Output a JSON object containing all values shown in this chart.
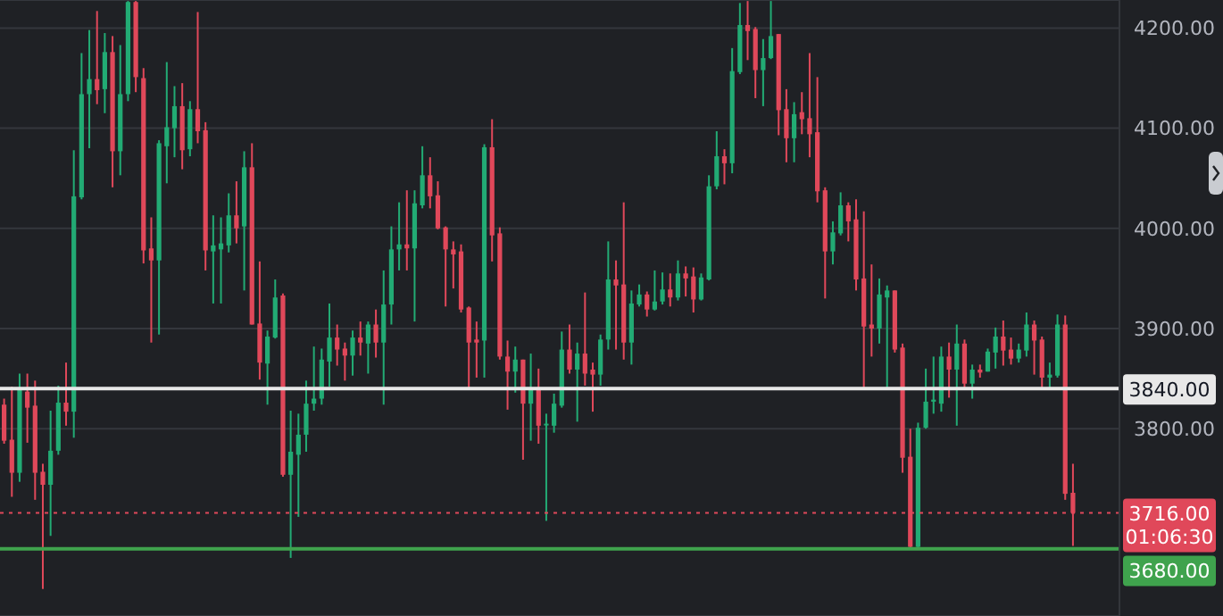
{
  "chart_data": {
    "type": "candlestick",
    "categories": [
      null,
      null,
      null,
      null,
      null,
      null,
      null,
      null,
      null,
      null,
      null,
      null,
      null,
      null,
      null,
      null,
      null,
      null,
      null,
      null,
      null,
      null,
      null,
      null,
      null,
      null,
      null,
      null,
      null,
      null,
      null,
      null,
      null,
      null,
      null,
      null,
      null,
      null,
      null,
      null,
      null,
      null,
      null,
      null,
      null,
      null,
      null,
      null,
      null,
      null,
      null,
      null,
      null,
      null,
      null,
      null,
      null,
      null,
      null,
      null,
      null,
      null,
      null,
      null,
      null,
      null,
      null,
      null,
      null,
      null,
      null,
      null,
      null,
      null,
      null,
      null,
      null,
      null,
      null,
      null,
      null,
      null,
      null,
      null,
      null,
      null,
      null,
      null,
      null,
      null,
      null,
      null,
      null,
      null,
      null,
      null,
      null,
      null,
      null,
      null,
      null,
      null,
      null,
      null,
      null,
      null,
      null,
      null,
      null,
      null,
      null,
      null,
      null,
      null,
      null,
      null,
      null,
      null,
      null,
      null,
      null,
      null,
      null,
      null,
      null,
      null,
      null,
      null,
      null,
      null,
      null,
      null,
      null,
      null,
      null,
      null,
      null,
      null,
      null
    ],
    "ohlc": [
      [
        3824,
        3830,
        3785,
        3788
      ],
      [
        3789,
        3842,
        3732,
        3756
      ],
      [
        3756,
        3855,
        3747,
        3839
      ],
      [
        3837,
        3855,
        3786,
        3821
      ],
      [
        3823,
        3848,
        3729,
        3756
      ],
      [
        3757,
        3765,
        3640,
        3744
      ],
      [
        3744,
        3818,
        3693,
        3778
      ],
      [
        3778,
        3843,
        3774,
        3826
      ],
      [
        3826,
        3866,
        3803,
        3817
      ],
      [
        3817,
        4078,
        3791,
        4032
      ],
      [
        4031,
        4175,
        4029,
        4134
      ],
      [
        4134,
        4198,
        4080,
        4149
      ],
      [
        4149,
        4217,
        4124,
        4138
      ],
      [
        4139,
        4195,
        4115,
        4176
      ],
      [
        4176,
        4192,
        4041,
        4077
      ],
      [
        4077,
        4183,
        4053,
        4134
      ],
      [
        4134,
        4227,
        4127,
        4226
      ],
      [
        4226,
        4227,
        4136,
        4151
      ],
      [
        4150,
        4160,
        3965,
        3978
      ],
      [
        3980,
        4011,
        3886,
        3968
      ],
      [
        3968,
        4088,
        3894,
        4085
      ],
      [
        4082,
        4166,
        4045,
        4101
      ],
      [
        4100,
        4142,
        4071,
        4122
      ],
      [
        4122,
        4145,
        4059,
        4078
      ],
      [
        4079,
        4127,
        4072,
        4119
      ],
      [
        4119,
        4216,
        4085,
        4097
      ],
      [
        4098,
        4106,
        3958,
        3978
      ],
      [
        3977,
        4013,
        3925,
        3983
      ],
      [
        3979,
        4011,
        3925,
        3985
      ],
      [
        3983,
        4035,
        3976,
        4013
      ],
      [
        4013,
        4047,
        3985,
        4000
      ],
      [
        4002,
        4077,
        3938,
        4061
      ],
      [
        4061,
        4085,
        3904,
        3904
      ],
      [
        3905,
        3967,
        3849,
        3866
      ],
      [
        3865,
        3898,
        3824,
        3892
      ],
      [
        3891,
        3949,
        3890,
        3931
      ],
      [
        3933,
        3935,
        3752,
        3754
      ],
      [
        3754,
        3818,
        3671,
        3777
      ],
      [
        3774,
        3815,
        3712,
        3794
      ],
      [
        3794,
        3848,
        3777,
        3825
      ],
      [
        3825,
        3882,
        3818,
        3830
      ],
      [
        3830,
        3880,
        3824,
        3869
      ],
      [
        3867,
        3925,
        3842,
        3891
      ],
      [
        3891,
        3904,
        3863,
        3879
      ],
      [
        3880,
        3886,
        3848,
        3873
      ],
      [
        3873,
        3898,
        3853,
        3891
      ],
      [
        3891,
        3907,
        3873,
        3886
      ],
      [
        3885,
        3907,
        3855,
        3904
      ],
      [
        3904,
        3919,
        3871,
        3886
      ],
      [
        3886,
        3958,
        3824,
        3924
      ],
      [
        3924,
        4002,
        3904,
        3979
      ],
      [
        3979,
        4026,
        3958,
        3984
      ],
      [
        3984,
        4038,
        3958,
        3980
      ],
      [
        3980,
        4038,
        3907,
        4025
      ],
      [
        4023,
        4082,
        4020,
        4053
      ],
      [
        4053,
        4071,
        4020,
        4032
      ],
      [
        4033,
        4047,
        3999,
        4000
      ],
      [
        4001,
        4002,
        3922,
        3979
      ],
      [
        3979,
        3987,
        3940,
        3974
      ],
      [
        3977,
        3984,
        3916,
        3919
      ],
      [
        3921,
        3922,
        3839,
        3886
      ],
      [
        3889,
        3907,
        3851,
        3886
      ],
      [
        3888,
        4084,
        3851,
        4081
      ],
      [
        4081,
        4109,
        3967,
        3993
      ],
      [
        3995,
        4001,
        3869,
        3872
      ],
      [
        3872,
        3888,
        3819,
        3857
      ],
      [
        3857,
        3882,
        3836,
        3869
      ],
      [
        3869,
        3869,
        3769,
        3825
      ],
      [
        3825,
        3875,
        3788,
        3839
      ],
      [
        3841,
        3860,
        3785,
        3803
      ],
      [
        3804,
        3815,
        3708,
        3805
      ],
      [
        3803,
        3835,
        3796,
        3825
      ],
      [
        3823,
        3897,
        3821,
        3879
      ],
      [
        3879,
        3904,
        3855,
        3859
      ],
      [
        3859,
        3886,
        3807,
        3875
      ],
      [
        3875,
        3936,
        3843,
        3855
      ],
      [
        3859,
        3866,
        3817,
        3854
      ],
      [
        3854,
        3894,
        3843,
        3889
      ],
      [
        3889,
        3987,
        3879,
        3949
      ],
      [
        3949,
        3968,
        3879,
        3943
      ],
      [
        3944,
        4026,
        3869,
        3886
      ],
      [
        3886,
        3938,
        3864,
        3925
      ],
      [
        3924,
        3944,
        3922,
        3934
      ],
      [
        3934,
        3937,
        3912,
        3919
      ],
      [
        3919,
        3958,
        3918,
        3927
      ],
      [
        3927,
        3956,
        3924,
        3939
      ],
      [
        3939,
        3955,
        3922,
        3931
      ],
      [
        3931,
        3968,
        3928,
        3955
      ],
      [
        3955,
        3962,
        3932,
        3950
      ],
      [
        3952,
        3961,
        3916,
        3929
      ],
      [
        3929,
        3955,
        3928,
        3951
      ],
      [
        3949,
        4053,
        3948,
        4042
      ],
      [
        4042,
        4097,
        4039,
        4072
      ],
      [
        4072,
        4079,
        4044,
        4065
      ],
      [
        4065,
        4180,
        4055,
        4157
      ],
      [
        4156,
        4225,
        4154,
        4203
      ],
      [
        4203,
        4227,
        4168,
        4197
      ],
      [
        4199,
        4201,
        4130,
        4158
      ],
      [
        4158,
        4189,
        4122,
        4170
      ],
      [
        4170,
        4227,
        4169,
        4192
      ],
      [
        4194,
        4194,
        4093,
        4118
      ],
      [
        4119,
        4139,
        4066,
        4090
      ],
      [
        4090,
        4126,
        4066,
        4114
      ],
      [
        4116,
        4136,
        4094,
        4109
      ],
      [
        4110,
        4175,
        4071,
        4094
      ],
      [
        4096,
        4151,
        4026,
        4037
      ],
      [
        4038,
        4041,
        3930,
        3977
      ],
      [
        3977,
        4007,
        3964,
        3996
      ],
      [
        3995,
        4036,
        3993,
        4023
      ],
      [
        4023,
        4026,
        3987,
        4007
      ],
      [
        4009,
        4029,
        3938,
        3949
      ],
      [
        3950,
        4017,
        3839,
        3902
      ],
      [
        3904,
        3964,
        3872,
        3900
      ],
      [
        3900,
        3950,
        3885,
        3934
      ],
      [
        3931,
        3943,
        3839,
        3938
      ],
      [
        3938,
        3938,
        3876,
        3879
      ],
      [
        3881,
        3885,
        3756,
        3771
      ],
      [
        3772,
        3800,
        3679,
        3682
      ],
      [
        3682,
        3806,
        3679,
        3801
      ],
      [
        3801,
        3860,
        3800,
        3827
      ],
      [
        3827,
        3872,
        3815,
        3829
      ],
      [
        3825,
        3882,
        3817,
        3872
      ],
      [
        3872,
        3886,
        3831,
        3859
      ],
      [
        3859,
        3904,
        3803,
        3885
      ],
      [
        3885,
        3889,
        3839,
        3845
      ],
      [
        3845,
        3864,
        3830,
        3859
      ],
      [
        3859,
        3864,
        3851,
        3856
      ],
      [
        3857,
        3880,
        3857,
        3877
      ],
      [
        3876,
        3901,
        3860,
        3892
      ],
      [
        3892,
        3908,
        3863,
        3878
      ],
      [
        3879,
        3891,
        3864,
        3870
      ],
      [
        3870,
        3885,
        3866,
        3879
      ],
      [
        3878,
        3916,
        3872,
        3904
      ],
      [
        3904,
        3908,
        3854,
        3888
      ],
      [
        3889,
        3892,
        3839,
        3851
      ],
      [
        3851,
        3866,
        3839,
        3854
      ],
      [
        3853,
        3914,
        3851,
        3904
      ],
      [
        3904,
        3913,
        3729,
        3735
      ],
      [
        3736,
        3765,
        3683,
        3716
      ]
    ],
    "colors": [
      "#e0485a",
      "#e0485a",
      "#22ab74",
      "#e0485a",
      "#e0485a",
      "#e0485a",
      "#22ab74",
      "#22ab74",
      "#e0485a",
      "#22ab74",
      "#22ab74",
      "#22ab74",
      "#e0485a",
      "#22ab74",
      "#e0485a",
      "#22ab74",
      "#22ab74",
      "#e0485a",
      "#e0485a",
      "#e0485a",
      "#22ab74",
      "#22ab74",
      "#22ab74",
      "#e0485a",
      "#22ab74",
      "#e0485a",
      "#e0485a",
      "#22ab74",
      "#22ab74",
      "#22ab74",
      "#e0485a",
      "#22ab74",
      "#e0485a",
      "#e0485a",
      "#22ab74",
      "#22ab74",
      "#e0485a",
      "#22ab74",
      "#22ab74",
      "#22ab74",
      "#22ab74",
      "#22ab74",
      "#22ab74",
      "#e0485a",
      "#e0485a",
      "#22ab74",
      "#e0485a",
      "#22ab74",
      "#e0485a",
      "#22ab74",
      "#22ab74",
      "#22ab74",
      "#e0485a",
      "#22ab74",
      "#22ab74",
      "#e0485a",
      "#e0485a",
      "#e0485a",
      "#e0485a",
      "#e0485a",
      "#e0485a",
      "#e0485a",
      "#22ab74",
      "#e0485a",
      "#e0485a",
      "#e0485a",
      "#22ab74",
      "#e0485a",
      "#22ab74",
      "#e0485a",
      "#22ab74",
      "#22ab74",
      "#22ab74",
      "#e0485a",
      "#22ab74",
      "#e0485a",
      "#e0485a",
      "#22ab74",
      "#22ab74",
      "#e0485a",
      "#e0485a",
      "#22ab74",
      "#22ab74",
      "#e0485a",
      "#22ab74",
      "#22ab74",
      "#e0485a",
      "#22ab74",
      "#e0485a",
      "#e0485a",
      "#22ab74",
      "#22ab74",
      "#22ab74",
      "#e0485a",
      "#22ab74",
      "#22ab74",
      "#e0485a",
      "#e0485a",
      "#22ab74",
      "#22ab74",
      "#e0485a",
      "#e0485a",
      "#22ab74",
      "#e0485a",
      "#e0485a",
      "#e0485a",
      "#e0485a",
      "#22ab74",
      "#22ab74",
      "#e0485a",
      "#e0485a",
      "#e0485a",
      "#e0485a",
      "#22ab74",
      "#22ab74",
      "#e0485a",
      "#e0485a",
      "#e0485a",
      "#22ab74",
      "#22ab74",
      "#22ab74",
      "#22ab74",
      "#e0485a",
      "#22ab74",
      "#e0485a",
      "#22ab74",
      "#e0485a",
      "#22ab74",
      "#22ab74",
      "#e0485a",
      "#e0485a",
      "#22ab74",
      "#22ab74",
      "#e0485a",
      "#e0485a",
      "#22ab74",
      "#22ab74",
      "#e0485a",
      "#e0485a"
    ],
    "ylim": [
      3613,
      4228
    ],
    "yticks": [
      {
        "value": 3800,
        "label": "3800.00"
      },
      {
        "value": 3900,
        "label": "3900.00"
      },
      {
        "value": 4000,
        "label": "4000.00"
      },
      {
        "value": 4100,
        "label": "4100.00"
      },
      {
        "value": 4200,
        "label": "4200.00"
      }
    ],
    "grid": "y",
    "ref_lines": [
      {
        "axis": "y",
        "value": 3840,
        "label": "3840.00",
        "color": "#e8e8e8",
        "line_style": "solid"
      },
      {
        "axis": "y",
        "value": 3680,
        "label": "3680.00",
        "color": "#3fa34d",
        "line_style": "solid"
      },
      {
        "axis": "y",
        "value": 3716,
        "label": "3716.00",
        "color": "#e0485a",
        "line_style": "dotted"
      }
    ],
    "annotations": [
      "01:06:30"
    ]
  }
}
